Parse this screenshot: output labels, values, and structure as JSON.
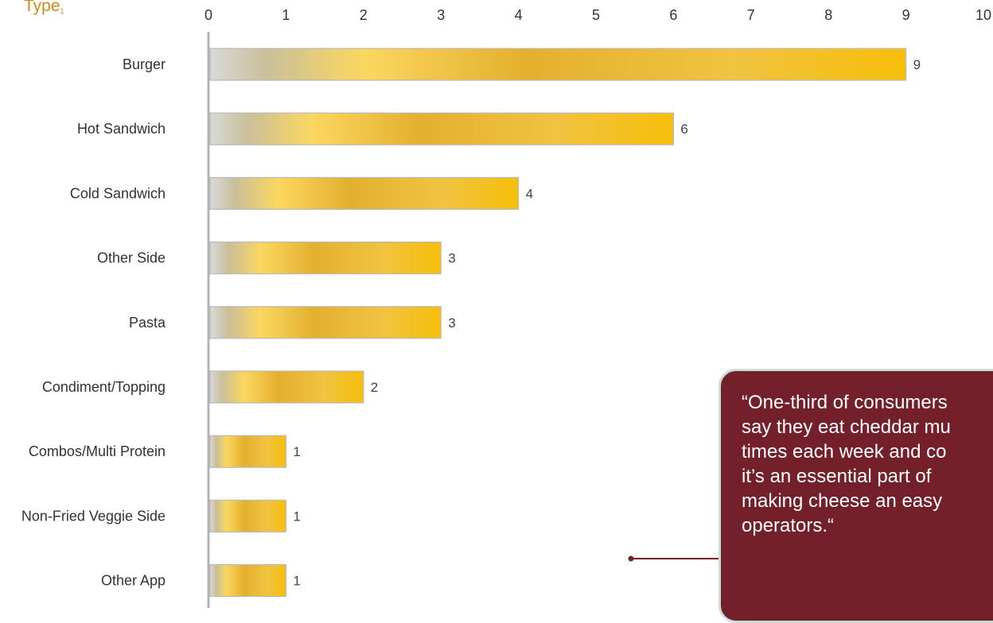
{
  "chart_data": {
    "type": "bar",
    "orientation": "horizontal",
    "category_axis_label": "Type",
    "category_axis_superscript": "1",
    "categories": [
      "Burger",
      "Hot Sandwich",
      "Cold Sandwich",
      "Other Side",
      "Pasta",
      "Condiment/Topping",
      "Combos/Multi Protein",
      "Non-Fried Veggie Side",
      "Other App"
    ],
    "values": [
      9,
      6,
      4,
      3,
      3,
      2,
      1,
      1,
      1
    ],
    "xlim": [
      0,
      10
    ],
    "xticks": [
      "0",
      "1",
      "2",
      "3",
      "4",
      "5",
      "6",
      "7",
      "8",
      "9",
      "10"
    ],
    "grid": false,
    "legend": "none",
    "bar_color": "#f2c21a"
  },
  "callout": {
    "text": "“One-third of consumers\nsay they eat cheddar mu\ntimes each week and co\nit’s an essential part of\nmaking cheese an easy\noperators.“",
    "bg_color": "#73202b",
    "line_color": "#73202b"
  }
}
